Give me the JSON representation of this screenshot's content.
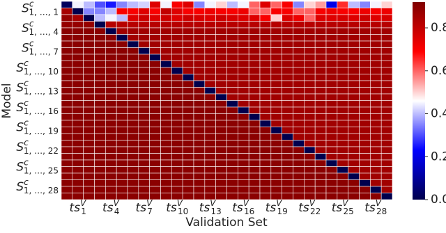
{
  "chart_data": {
    "type": "heatmap",
    "x_label": "Validation Set",
    "y_label": "Model",
    "x_categories": [
      null,
      {
        "main": "ts",
        "sup": "V",
        "sub": "1"
      },
      null,
      null,
      {
        "main": "ts",
        "sup": "V",
        "sub": "4"
      },
      null,
      null,
      {
        "main": "ts",
        "sup": "V",
        "sub": "7"
      },
      null,
      null,
      {
        "main": "ts",
        "sup": "V",
        "sub": "10"
      },
      null,
      null,
      {
        "main": "ts",
        "sup": "V",
        "sub": "13"
      },
      null,
      null,
      {
        "main": "ts",
        "sup": "V",
        "sub": "16"
      },
      null,
      null,
      {
        "main": "ts",
        "sup": "V",
        "sub": "19"
      },
      null,
      null,
      {
        "main": "ts",
        "sup": "V",
        "sub": "22"
      },
      null,
      null,
      {
        "main": "ts",
        "sup": "V",
        "sub": "25"
      },
      null,
      null,
      {
        "main": "ts",
        "sup": "V",
        "sub": "28"
      },
      null
    ],
    "y_categories": [
      null,
      {
        "main": "S",
        "sup": "c",
        "sub": "1, …, 1"
      },
      null,
      null,
      {
        "main": "S",
        "sup": "c",
        "sub": "1, …, 4"
      },
      null,
      null,
      {
        "main": "S",
        "sup": "c",
        "sub": "1, …, 7"
      },
      null,
      null,
      {
        "main": "S",
        "sup": "c",
        "sub": "1, …, 10"
      },
      null,
      null,
      {
        "main": "S",
        "sup": "c",
        "sub": "1, …, 13"
      },
      null,
      null,
      {
        "main": "S",
        "sup": "c",
        "sub": "1, …, 16"
      },
      null,
      null,
      {
        "main": "S",
        "sup": "c",
        "sub": "1, …, 19"
      },
      null,
      null,
      {
        "main": "S",
        "sup": "c",
        "sub": "1, …, 22"
      },
      null,
      null,
      {
        "main": "S",
        "sup": "c",
        "sub": "1, …, 25"
      },
      null,
      null,
      {
        "main": "S",
        "sup": "c",
        "sub": "1, …, 28"
      },
      null
    ],
    "colormap": "seismic",
    "colorbar": {
      "lim": [
        0,
        0.92
      ],
      "ticks": [
        {
          "value": 0,
          "label": "0.0"
        },
        0.2,
        0.4,
        0.6,
        0.8
      ]
    },
    "values": [
      [
        0.02,
        0.45,
        0.4,
        0.3,
        0.25,
        0.35,
        0.4,
        0.42,
        0.75,
        0.45,
        0.7,
        0.75,
        0.35,
        0.45,
        0.5,
        0.4,
        0.45,
        0.6,
        0.75,
        0.6,
        0.7,
        0.35,
        0.5,
        0.55,
        0.2,
        0.65,
        0.4,
        0.35,
        0.45,
        0.5
      ],
      [
        0.85,
        0,
        0.35,
        0.35,
        0.4,
        0.7,
        0.7,
        0.75,
        0.7,
        0.8,
        0.75,
        0.7,
        0.7,
        0.72,
        0.7,
        0.7,
        0.72,
        0.6,
        0.6,
        0.7,
        0.7,
        0.6,
        0.6,
        0.7,
        0.72,
        0.7,
        0.7,
        0.72,
        0.7,
        0.72
      ],
      [
        0.88,
        0.85,
        0,
        0.4,
        0.45,
        0.4,
        0.75,
        0.78,
        0.75,
        0.78,
        0.75,
        0.78,
        0.76,
        0.75,
        0.78,
        0.76,
        0.75,
        0.75,
        0.7,
        0.5,
        0.75,
        0.72,
        0.6,
        0.75,
        0.75,
        0.76,
        0.75,
        0.78,
        0.75,
        0.76
      ],
      [
        0.88,
        0.88,
        0.88,
        0,
        0.82,
        0.82,
        0.82,
        0.82,
        0.82,
        0.82,
        0.82,
        0.82,
        0.82,
        0.82,
        0.82,
        0.82,
        0.82,
        0.82,
        0.82,
        0.82,
        0.82,
        0.82,
        0.82,
        0.82,
        0.82,
        0.82,
        0.82,
        0.82,
        0.82,
        0.82
      ],
      [
        0.9,
        0.9,
        0.9,
        0.9,
        0,
        0.86,
        0.86,
        0.86,
        0.86,
        0.86,
        0.86,
        0.86,
        0.86,
        0.86,
        0.86,
        0.86,
        0.86,
        0.86,
        0.86,
        0.86,
        0.86,
        0.86,
        0.86,
        0.86,
        0.86,
        0.86,
        0.86,
        0.86,
        0.86,
        0.86
      ],
      [
        0.9,
        0.9,
        0.9,
        0.9,
        0.9,
        0,
        0.86,
        0.86,
        0.86,
        0.86,
        0.86,
        0.86,
        0.86,
        0.86,
        0.86,
        0.86,
        0.86,
        0.86,
        0.86,
        0.86,
        0.86,
        0.86,
        0.86,
        0.86,
        0.86,
        0.86,
        0.86,
        0.86,
        0.86,
        0.86
      ],
      [
        0.9,
        0.9,
        0.9,
        0.9,
        0.9,
        0.9,
        0,
        0.86,
        0.86,
        0.86,
        0.86,
        0.86,
        0.86,
        0.86,
        0.86,
        0.86,
        0.86,
        0.86,
        0.86,
        0.86,
        0.86,
        0.86,
        0.86,
        0.86,
        0.86,
        0.86,
        0.86,
        0.86,
        0.86,
        0.86
      ],
      [
        0.9,
        0.9,
        0.9,
        0.9,
        0.9,
        0.9,
        0.9,
        0,
        0.86,
        0.86,
        0.86,
        0.86,
        0.86,
        0.86,
        0.86,
        0.86,
        0.86,
        0.86,
        0.86,
        0.86,
        0.86,
        0.86,
        0.86,
        0.86,
        0.86,
        0.86,
        0.86,
        0.86,
        0.86,
        0.86
      ],
      [
        0.9,
        0.9,
        0.9,
        0.9,
        0.9,
        0.9,
        0.9,
        0.9,
        0,
        0.86,
        0.86,
        0.86,
        0.86,
        0.86,
        0.86,
        0.86,
        0.86,
        0.86,
        0.86,
        0.86,
        0.86,
        0.86,
        0.86,
        0.86,
        0.86,
        0.86,
        0.86,
        0.86,
        0.86,
        0.86
      ],
      [
        0.9,
        0.9,
        0.9,
        0.9,
        0.9,
        0.9,
        0.9,
        0.9,
        0.9,
        0,
        0.86,
        0.86,
        0.86,
        0.86,
        0.86,
        0.86,
        0.86,
        0.86,
        0.86,
        0.86,
        0.86,
        0.86,
        0.86,
        0.86,
        0.86,
        0.86,
        0.86,
        0.86,
        0.86,
        0.86
      ],
      [
        0.9,
        0.9,
        0.9,
        0.9,
        0.9,
        0.9,
        0.9,
        0.9,
        0.9,
        0.9,
        0,
        0.86,
        0.86,
        0.86,
        0.86,
        0.86,
        0.86,
        0.86,
        0.86,
        0.86,
        0.86,
        0.86,
        0.86,
        0.86,
        0.86,
        0.86,
        0.86,
        0.86,
        0.86,
        0.86
      ],
      [
        0.9,
        0.9,
        0.9,
        0.9,
        0.9,
        0.9,
        0.9,
        0.9,
        0.9,
        0.9,
        0.9,
        0,
        0.86,
        0.86,
        0.86,
        0.86,
        0.86,
        0.86,
        0.86,
        0.86,
        0.86,
        0.86,
        0.86,
        0.86,
        0.86,
        0.86,
        0.86,
        0.86,
        0.86,
        0.86
      ],
      [
        0.9,
        0.9,
        0.9,
        0.9,
        0.9,
        0.9,
        0.9,
        0.9,
        0.9,
        0.9,
        0.9,
        0.9,
        0,
        0.86,
        0.86,
        0.86,
        0.86,
        0.86,
        0.86,
        0.86,
        0.86,
        0.86,
        0.86,
        0.86,
        0.86,
        0.86,
        0.86,
        0.86,
        0.86,
        0.86
      ],
      [
        0.9,
        0.9,
        0.9,
        0.9,
        0.9,
        0.9,
        0.9,
        0.9,
        0.9,
        0.9,
        0.9,
        0.9,
        0.9,
        0,
        0.86,
        0.86,
        0.86,
        0.86,
        0.86,
        0.86,
        0.86,
        0.86,
        0.86,
        0.86,
        0.86,
        0.86,
        0.86,
        0.86,
        0.86,
        0.86
      ],
      [
        0.9,
        0.9,
        0.9,
        0.9,
        0.9,
        0.9,
        0.9,
        0.9,
        0.9,
        0.9,
        0.9,
        0.9,
        0.9,
        0.9,
        0,
        0.86,
        0.86,
        0.86,
        0.86,
        0.86,
        0.86,
        0.86,
        0.86,
        0.86,
        0.86,
        0.86,
        0.86,
        0.86,
        0.86,
        0.86
      ],
      [
        0.9,
        0.9,
        0.9,
        0.9,
        0.9,
        0.9,
        0.9,
        0.9,
        0.9,
        0.9,
        0.9,
        0.9,
        0.9,
        0.9,
        0.9,
        0,
        0.86,
        0.86,
        0.86,
        0.86,
        0.86,
        0.86,
        0.86,
        0.86,
        0.86,
        0.86,
        0.86,
        0.86,
        0.86,
        0.86
      ],
      [
        0.9,
        0.9,
        0.9,
        0.9,
        0.9,
        0.9,
        0.9,
        0.9,
        0.9,
        0.9,
        0.9,
        0.9,
        0.9,
        0.9,
        0.9,
        0.9,
        0,
        0.86,
        0.86,
        0.86,
        0.86,
        0.86,
        0.86,
        0.86,
        0.86,
        0.86,
        0.86,
        0.86,
        0.86,
        0.86
      ],
      [
        0.9,
        0.9,
        0.9,
        0.9,
        0.9,
        0.9,
        0.9,
        0.9,
        0.9,
        0.9,
        0.9,
        0.9,
        0.9,
        0.9,
        0.9,
        0.9,
        0.9,
        0,
        0.86,
        0.86,
        0.86,
        0.86,
        0.86,
        0.86,
        0.86,
        0.86,
        0.86,
        0.86,
        0.86,
        0.86
      ],
      [
        0.9,
        0.9,
        0.9,
        0.9,
        0.9,
        0.9,
        0.9,
        0.9,
        0.9,
        0.9,
        0.9,
        0.9,
        0.9,
        0.9,
        0.9,
        0.9,
        0.9,
        0.9,
        0,
        0.86,
        0.86,
        0.86,
        0.86,
        0.86,
        0.86,
        0.86,
        0.86,
        0.86,
        0.86,
        0.86
      ],
      [
        0.9,
        0.9,
        0.9,
        0.9,
        0.9,
        0.9,
        0.9,
        0.9,
        0.9,
        0.9,
        0.9,
        0.9,
        0.9,
        0.9,
        0.9,
        0.9,
        0.9,
        0.9,
        0.9,
        0,
        0.86,
        0.86,
        0.86,
        0.86,
        0.86,
        0.86,
        0.86,
        0.86,
        0.86,
        0.86
      ],
      [
        0.9,
        0.9,
        0.9,
        0.9,
        0.9,
        0.9,
        0.9,
        0.9,
        0.9,
        0.9,
        0.9,
        0.9,
        0.9,
        0.9,
        0.9,
        0.9,
        0.9,
        0.9,
        0.9,
        0.9,
        0,
        0.86,
        0.86,
        0.86,
        0.86,
        0.86,
        0.86,
        0.86,
        0.86,
        0.86
      ],
      [
        0.9,
        0.9,
        0.9,
        0.9,
        0.9,
        0.9,
        0.9,
        0.9,
        0.9,
        0.9,
        0.9,
        0.9,
        0.9,
        0.9,
        0.9,
        0.9,
        0.9,
        0.9,
        0.9,
        0.9,
        0.9,
        0,
        0.86,
        0.86,
        0.86,
        0.86,
        0.86,
        0.86,
        0.86,
        0.86
      ],
      [
        0.9,
        0.9,
        0.9,
        0.9,
        0.9,
        0.9,
        0.9,
        0.9,
        0.9,
        0.9,
        0.9,
        0.9,
        0.9,
        0.9,
        0.9,
        0.9,
        0.9,
        0.9,
        0.9,
        0.9,
        0.9,
        0.9,
        0,
        0.86,
        0.86,
        0.86,
        0.86,
        0.86,
        0.86,
        0.86
      ],
      [
        0.9,
        0.9,
        0.9,
        0.9,
        0.9,
        0.9,
        0.9,
        0.9,
        0.9,
        0.9,
        0.9,
        0.9,
        0.9,
        0.9,
        0.9,
        0.9,
        0.9,
        0.9,
        0.9,
        0.9,
        0.9,
        0.9,
        0.9,
        0,
        0.86,
        0.86,
        0.86,
        0.86,
        0.86,
        0.86
      ],
      [
        0.9,
        0.9,
        0.9,
        0.9,
        0.9,
        0.9,
        0.9,
        0.9,
        0.9,
        0.9,
        0.9,
        0.9,
        0.9,
        0.9,
        0.9,
        0.9,
        0.9,
        0.9,
        0.9,
        0.9,
        0.9,
        0.9,
        0.9,
        0.9,
        0,
        0.86,
        0.86,
        0.86,
        0.86,
        0.86
      ],
      [
        0.9,
        0.9,
        0.9,
        0.9,
        0.9,
        0.9,
        0.9,
        0.9,
        0.9,
        0.9,
        0.9,
        0.9,
        0.9,
        0.9,
        0.9,
        0.9,
        0.9,
        0.9,
        0.9,
        0.9,
        0.9,
        0.9,
        0.9,
        0.9,
        0.9,
        0,
        0.86,
        0.86,
        0.86,
        0.86
      ],
      [
        0.9,
        0.9,
        0.9,
        0.9,
        0.9,
        0.9,
        0.9,
        0.9,
        0.9,
        0.9,
        0.9,
        0.9,
        0.9,
        0.9,
        0.9,
        0.9,
        0.9,
        0.9,
        0.9,
        0.9,
        0.9,
        0.9,
        0.9,
        0.9,
        0.9,
        0.9,
        0,
        0.86,
        0.86,
        0.86
      ],
      [
        0.9,
        0.9,
        0.9,
        0.9,
        0.9,
        0.9,
        0.9,
        0.9,
        0.9,
        0.9,
        0.9,
        0.9,
        0.9,
        0.9,
        0.9,
        0.9,
        0.9,
        0.9,
        0.9,
        0.9,
        0.9,
        0.9,
        0.9,
        0.9,
        0.9,
        0.9,
        0.9,
        0,
        0.86,
        0.86
      ],
      [
        0.9,
        0.9,
        0.9,
        0.9,
        0.9,
        0.9,
        0.9,
        0.9,
        0.9,
        0.9,
        0.9,
        0.9,
        0.9,
        0.9,
        0.9,
        0.9,
        0.9,
        0.9,
        0.9,
        0.9,
        0.9,
        0.9,
        0.9,
        0.9,
        0.9,
        0.9,
        0.9,
        0.9,
        0,
        0.86
      ],
      [
        0.9,
        0.9,
        0.9,
        0.9,
        0.9,
        0.9,
        0.9,
        0.9,
        0.9,
        0.9,
        0.9,
        0.9,
        0.9,
        0.9,
        0.9,
        0.9,
        0.9,
        0.9,
        0.9,
        0.9,
        0.9,
        0.9,
        0.9,
        0.9,
        0.9,
        0.9,
        0.9,
        0.9,
        0.9,
        0
      ]
    ]
  }
}
